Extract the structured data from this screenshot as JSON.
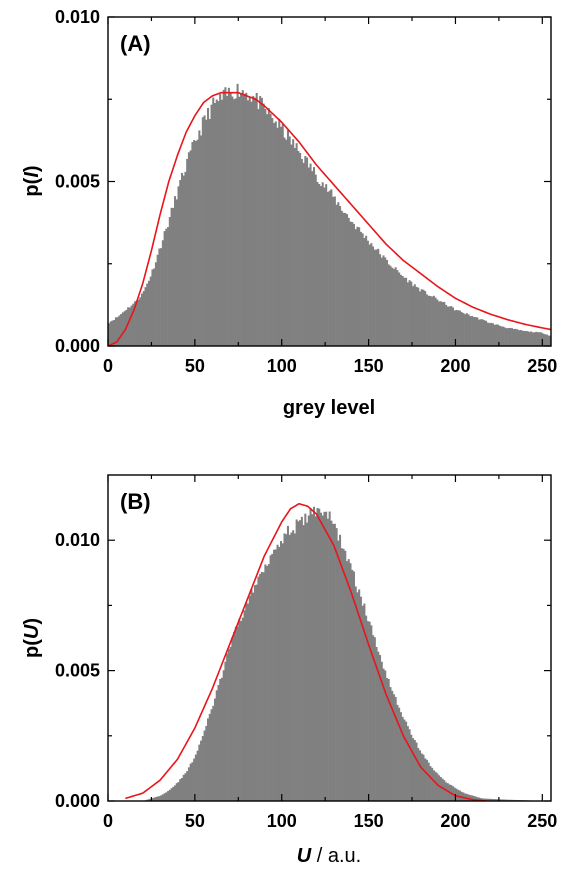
{
  "chart_data": [
    {
      "type": "histogram",
      "panel_label": "(A)",
      "xlabel": "grey level",
      "ylabel": {
        "prefix": "p(",
        "var": "I",
        "suffix": ")"
      },
      "xlim": [
        0,
        255
      ],
      "ylim": [
        0,
        0.01
      ],
      "xticks": [
        0,
        50,
        100,
        150,
        200,
        250
      ],
      "xtick_labels": [
        "0",
        "50",
        "100",
        "150",
        "200",
        "250"
      ],
      "yticks": [
        0.0,
        0.005,
        0.01
      ],
      "ytick_labels": [
        "0.000",
        "0.005",
        "0.010"
      ],
      "bin_width": 1,
      "histogram_profile": {
        "x": [
          0,
          3,
          6,
          10,
          15,
          20,
          25,
          30,
          35,
          40,
          45,
          50,
          55,
          60,
          65,
          70,
          75,
          80,
          85,
          90,
          100,
          110,
          120,
          130,
          140,
          150,
          160,
          170,
          180,
          190,
          200,
          210,
          220,
          230,
          240,
          250,
          255
        ],
        "y": [
          0.0007,
          0.0008,
          0.0009,
          0.0011,
          0.0013,
          0.0016,
          0.0022,
          0.003,
          0.0038,
          0.0047,
          0.0055,
          0.0062,
          0.0068,
          0.0073,
          0.0075,
          0.0077,
          0.0078,
          0.0077,
          0.0075,
          0.0072,
          0.0066,
          0.0059,
          0.0052,
          0.0045,
          0.0038,
          0.0032,
          0.0026,
          0.0021,
          0.0017,
          0.0014,
          0.0011,
          0.0009,
          0.0007,
          0.00055,
          0.00045,
          0.0004,
          0.0003
        ]
      },
      "fit_curve": {
        "x": [
          0,
          5,
          10,
          15,
          20,
          25,
          30,
          35,
          40,
          45,
          50,
          55,
          60,
          65,
          70,
          75,
          80,
          85,
          90,
          100,
          110,
          120,
          130,
          140,
          150,
          160,
          170,
          180,
          190,
          200,
          210,
          220,
          230,
          240,
          250,
          255
        ],
        "y": [
          0.0,
          0.00012,
          0.0005,
          0.0011,
          0.0019,
          0.0029,
          0.004,
          0.005,
          0.0058,
          0.0065,
          0.007,
          0.0074,
          0.0076,
          0.0077,
          0.0077,
          0.0077,
          0.0076,
          0.0075,
          0.0073,
          0.0068,
          0.0062,
          0.0055,
          0.0049,
          0.0043,
          0.0037,
          0.0031,
          0.0026,
          0.0022,
          0.0018,
          0.00145,
          0.00118,
          0.00097,
          0.0008,
          0.00066,
          0.00055,
          0.0005
        ]
      },
      "colors": {
        "histogram": "#808080",
        "fit": "#e8151b"
      }
    },
    {
      "type": "histogram",
      "panel_label": "(B)",
      "xlabel": {
        "var": "U",
        "suffix": " / a.u."
      },
      "ylabel": {
        "prefix": "p(",
        "var": "U",
        "suffix": ")"
      },
      "xlim": [
        0,
        255
      ],
      "ylim": [
        0,
        0.0125
      ],
      "xticks": [
        0,
        50,
        100,
        150,
        200,
        250
      ],
      "xtick_labels": [
        "0",
        "50",
        "100",
        "150",
        "200",
        "250"
      ],
      "yticks": [
        0.0,
        0.005,
        0.01
      ],
      "ytick_labels": [
        "0.000",
        "0.005",
        "0.010"
      ],
      "bin_width": 1,
      "histogram_profile": {
        "x": [
          20,
          25,
          30,
          35,
          40,
          45,
          50,
          55,
          60,
          65,
          70,
          75,
          80,
          85,
          90,
          95,
          100,
          105,
          110,
          115,
          120,
          125,
          130,
          135,
          140,
          145,
          150,
          155,
          160,
          165,
          170,
          175,
          180,
          185,
          190,
          195,
          200,
          205,
          210,
          215,
          220,
          230,
          240,
          250
        ],
        "y": [
          0.0,
          0.0001,
          0.0002,
          0.0004,
          0.0007,
          0.0011,
          0.0017,
          0.0026,
          0.0036,
          0.0047,
          0.0059,
          0.0068,
          0.0076,
          0.0083,
          0.009,
          0.0096,
          0.0101,
          0.0104,
          0.0106,
          0.0109,
          0.0112,
          0.0111,
          0.0106,
          0.0098,
          0.0089,
          0.0079,
          0.0069,
          0.0059,
          0.0049,
          0.004,
          0.0032,
          0.0025,
          0.0019,
          0.0014,
          0.001,
          0.0007,
          0.0005,
          0.0003,
          0.0002,
          0.0001,
          8e-05,
          5e-05,
          3e-05,
          0.0
        ]
      },
      "fit_curve": {
        "x": [
          10,
          20,
          30,
          40,
          50,
          60,
          70,
          80,
          90,
          100,
          105,
          110,
          115,
          120,
          130,
          140,
          150,
          160,
          170,
          180,
          190,
          200,
          210,
          218
        ],
        "y": [
          0.0001,
          0.0003,
          0.0008,
          0.0016,
          0.0028,
          0.0043,
          0.006,
          0.0077,
          0.0094,
          0.0107,
          0.0112,
          0.0114,
          0.0113,
          0.011,
          0.0098,
          0.008,
          0.006,
          0.0041,
          0.0025,
          0.0013,
          0.0006,
          0.0002,
          5e-05,
          0.0
        ]
      },
      "colors": {
        "histogram": "#808080",
        "fit": "#e8151b"
      }
    }
  ]
}
